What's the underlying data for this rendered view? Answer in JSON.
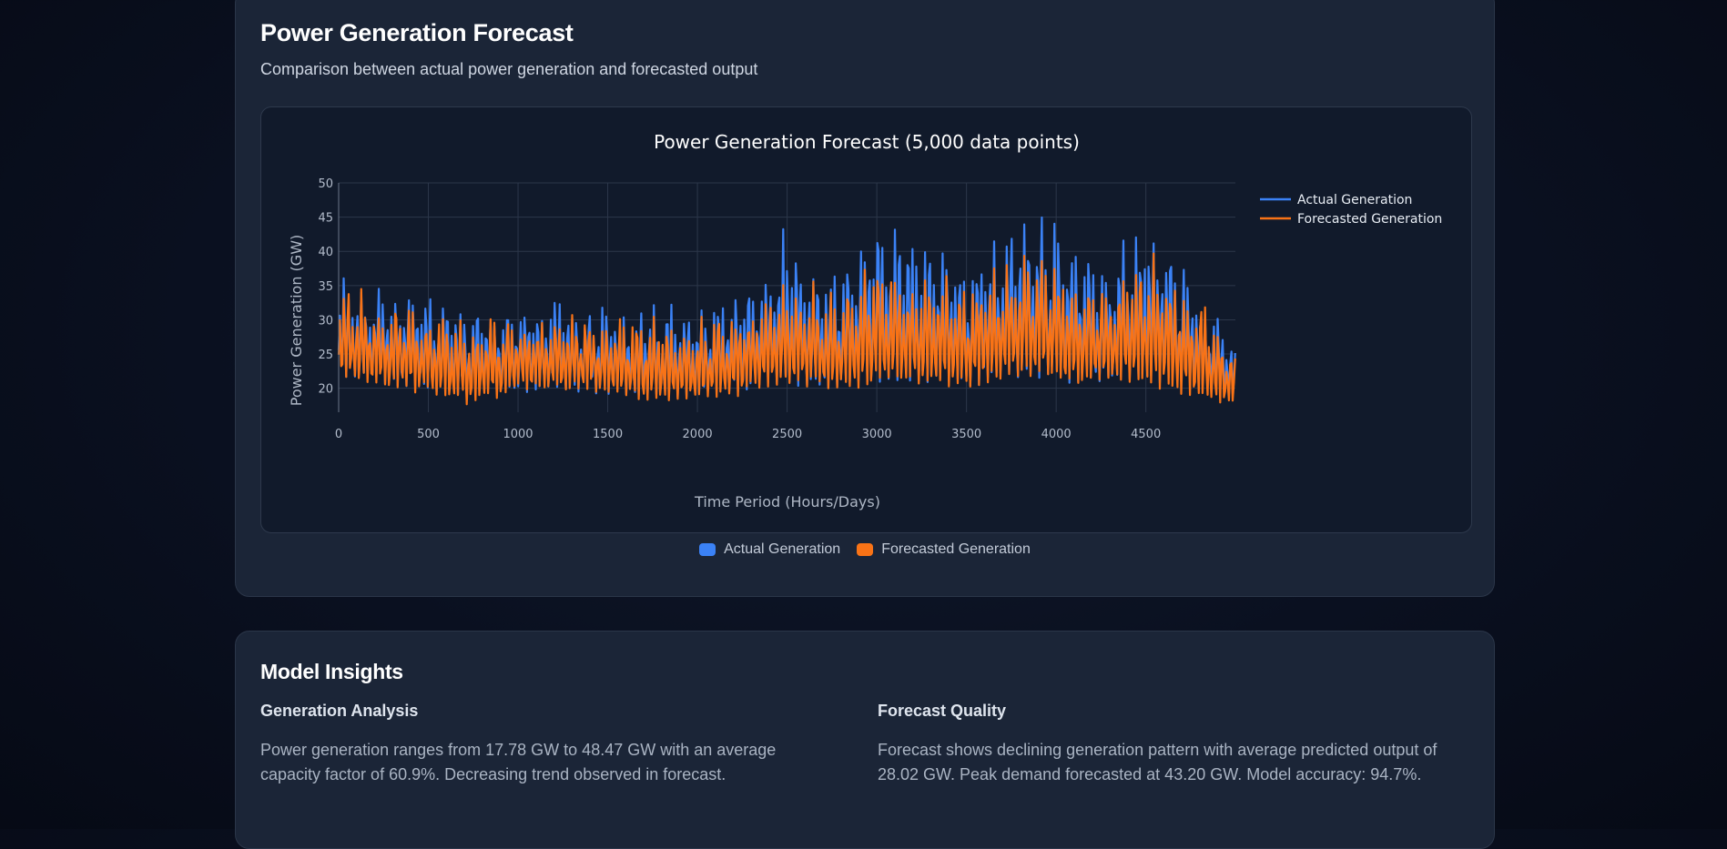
{
  "forecast_card": {
    "title": "Power Generation Forecast",
    "subtitle": "Comparison between actual power generation and forecasted output"
  },
  "legend_bottom": {
    "items": [
      {
        "label": "Actual Generation",
        "color": "#3b82f6"
      },
      {
        "label": "Forecasted Generation",
        "color": "#f97316"
      }
    ]
  },
  "insights_card": {
    "title": "Model Insights",
    "generation": {
      "heading": "Generation Analysis",
      "text": "Power generation ranges from 17.78 GW to 48.47 GW with an average capacity factor of 60.9%. Decreasing trend observed in forecast."
    },
    "quality": {
      "heading": "Forecast Quality",
      "text": "Forecast shows declining generation pattern with average predicted output of 28.02 GW. Peak demand forecasted at 43.20 GW. Model accuracy: 94.7%."
    }
  },
  "chart_data": {
    "type": "line",
    "title": "Power Generation Forecast (5,000 data points)",
    "xlabel": "Time Period (Hours/Days)",
    "ylabel": "Power Generation (GW)",
    "xlim": [
      0,
      4999
    ],
    "ylim": [
      16.5,
      50
    ],
    "x_ticks": [
      0,
      500,
      1000,
      1500,
      2000,
      2500,
      3000,
      3500,
      4000,
      4500
    ],
    "y_ticks": [
      20,
      25,
      30,
      35,
      40,
      45,
      50
    ],
    "grid": true,
    "legend_position": "top-right",
    "x": [
      0,
      250,
      500,
      750,
      1000,
      1250,
      1500,
      1750,
      2000,
      2250,
      2500,
      2750,
      3000,
      3250,
      3500,
      3750,
      3900,
      4100,
      4250,
      4500,
      4750,
      4999
    ],
    "series": [
      {
        "name": "Actual Generation",
        "color": "#3b82f6",
        "min": [
          22,
          21,
          20,
          19,
          20,
          20,
          19.5,
          19,
          19,
          20,
          21,
          20,
          21,
          21,
          20.5,
          22,
          22,
          21,
          21,
          21.5,
          20,
          19
        ],
        "max": [
          39,
          36,
          35,
          33,
          34,
          34,
          33,
          33,
          33,
          36,
          45,
          38,
          48,
          44,
          42,
          45,
          48.5,
          45,
          40,
          47,
          39,
          28
        ]
      },
      {
        "name": "Forecasted Generation",
        "color": "#f97316",
        "min": [
          22,
          20.5,
          19.5,
          18,
          20,
          20,
          19.5,
          18.5,
          18.5,
          19.5,
          21,
          20,
          21,
          21,
          20.5,
          22,
          22,
          21,
          21,
          21,
          19,
          18
        ],
        "max": [
          35,
          34,
          33,
          31,
          32,
          32,
          31,
          31,
          31,
          33,
          38,
          35,
          40,
          38,
          38,
          40,
          42,
          39,
          37,
          42,
          36,
          26
        ]
      }
    ]
  }
}
